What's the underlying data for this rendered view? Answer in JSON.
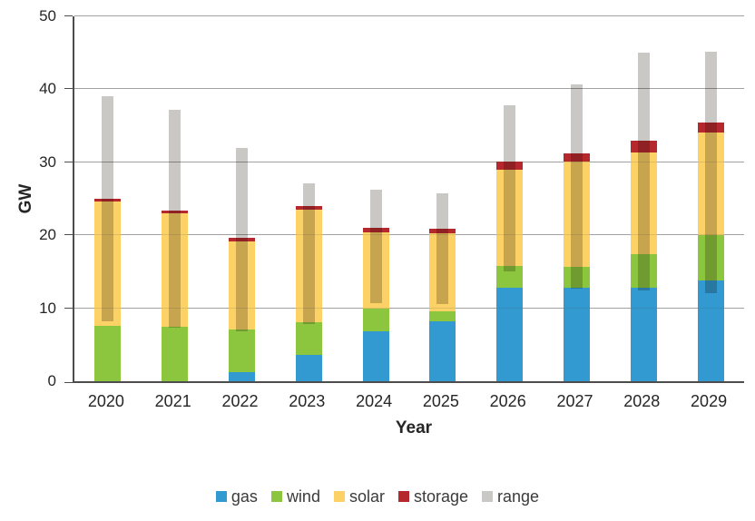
{
  "chart_data": {
    "type": "bar",
    "stacked": true,
    "title": "",
    "xlabel": "Year",
    "ylabel": "GW",
    "ylim": [
      0,
      50
    ],
    "yticks": [
      0,
      10,
      20,
      30,
      40,
      50
    ],
    "grid": true,
    "legend_position": "bottom",
    "categories": [
      "2020",
      "2021",
      "2022",
      "2023",
      "2024",
      "2025",
      "2026",
      "2027",
      "2028",
      "2029"
    ],
    "series": [
      {
        "name": "gas",
        "color": "#3299d1",
        "values": [
          0,
          0,
          1.2,
          3.6,
          6.9,
          8.2,
          12.8,
          12.8,
          12.8,
          13.8
        ]
      },
      {
        "name": "wind",
        "color": "#8cc63f",
        "values": [
          7.6,
          7.5,
          5.9,
          4.5,
          3.1,
          1.4,
          3.0,
          2.9,
          4.6,
          6.2
        ]
      },
      {
        "name": "solar",
        "color": "#fcd266",
        "values": [
          17.0,
          15.5,
          12.1,
          15.4,
          10.4,
          10.7,
          13.2,
          14.4,
          14.0,
          14.1
        ]
      },
      {
        "name": "storage",
        "color": "#b4282e",
        "values": [
          0.4,
          0.4,
          0.5,
          0.5,
          0.6,
          0.6,
          1.1,
          1.1,
          1.6,
          1.3
        ]
      }
    ],
    "stack_totals": [
      25.0,
      23.4,
      19.7,
      24.0,
      21.0,
      20.9,
      30.1,
      31.2,
      33.0,
      35.4
    ],
    "range_series": {
      "name": "range",
      "color": "#cac8c4",
      "low": [
        8.2,
        7.4,
        6.9,
        7.8,
        10.7,
        10.6,
        15.1,
        12.7,
        12.4,
        12.1
      ],
      "high": [
        39.0,
        37.2,
        32.0,
        27.1,
        26.2,
        25.8,
        37.8,
        40.7,
        45.0,
        45.2
      ]
    },
    "legend": [
      "gas",
      "wind",
      "solar",
      "storage",
      "range"
    ]
  }
}
